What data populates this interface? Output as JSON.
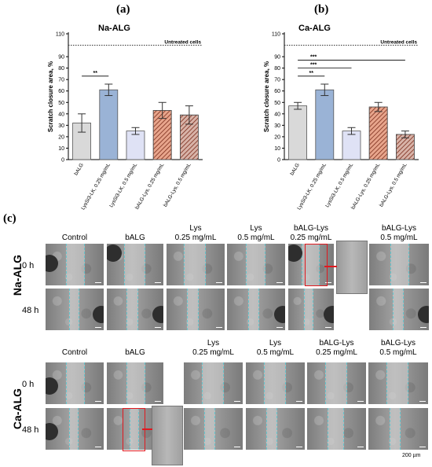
{
  "panels": {
    "a": "(a)",
    "b": "(b)",
    "c": "(c)"
  },
  "chart_data": [
    {
      "type": "bar",
      "title": "Na-ALG",
      "ylabel": "Scratch closure area, %",
      "ylim": [
        0,
        110
      ],
      "yticks": [
        "0",
        "10",
        "20",
        "30",
        "40",
        "50",
        "60",
        "70",
        "80",
        "90",
        "110"
      ],
      "categories": [
        "bALG",
        "LysSi3-LK, 0.25 mg/mL",
        "LysSi3-LK, 0.5 mg/mL",
        "bALG-Lys, 0.25 mg/mL",
        "bALG-Lys, 0.5 mg/mL"
      ],
      "values": [
        32,
        61,
        25,
        43,
        39
      ],
      "errors": [
        8,
        5,
        3,
        7,
        8
      ],
      "colors": [
        "#d9d9d9",
        "#9ab3d6",
        "#dfe2f5",
        "#e8a58c",
        "#d8b3a8"
      ],
      "hatched": [
        false,
        false,
        false,
        true,
        true
      ],
      "reference": {
        "label": "Untreated cells",
        "value": 100
      },
      "significance": [
        {
          "from": 0,
          "to": 1,
          "label": "**",
          "y": 73
        }
      ]
    },
    {
      "type": "bar",
      "title": "Ca-ALG",
      "ylabel": "Scratch closure area, %",
      "ylim": [
        0,
        110
      ],
      "yticks": [
        "0",
        "10",
        "20",
        "30",
        "40",
        "50",
        "60",
        "70",
        "80",
        "90",
        "110"
      ],
      "categories": [
        "bALG",
        "LysSi3-LK, 0.25 mg/mL",
        "LysSi3-LK, 0.5 mg/mL",
        "bALG-Lys, 0.25 mg/mL",
        "bALG-Lys, 0.5 mg/mL"
      ],
      "values": [
        47,
        61,
        25,
        46,
        22
      ],
      "errors": [
        3,
        5,
        3,
        4,
        3
      ],
      "colors": [
        "#d9d9d9",
        "#9ab3d6",
        "#dfe2f5",
        "#e8a58c",
        "#d8b3a8"
      ],
      "hatched": [
        false,
        false,
        false,
        true,
        true
      ],
      "reference": {
        "label": "Untreated cells",
        "value": 100
      },
      "significance": [
        {
          "from": 0,
          "to": 1,
          "label": "**",
          "y": 73
        },
        {
          "from": 0,
          "to": 2,
          "label": "***",
          "y": 80
        },
        {
          "from": 0,
          "to": 4,
          "label": "***",
          "y": 87
        }
      ]
    }
  ],
  "micrographs": {
    "na_group": "Na-ALG",
    "ca_group": "Ca-ALG",
    "rows": [
      "0 h",
      "48 h"
    ],
    "na_columns": [
      "Control",
      "bALG",
      "Lys\n0.25 mg/mL",
      "Lys\n0.5 mg/mL",
      "bALG-Lys\n0.25 mg/mL",
      "bALG-Lys\n0.5 mg/mL"
    ],
    "ca_columns": [
      "Control",
      "bALG",
      "Lys\n0.25 mg/mL",
      "Lys\n0.5 mg/mL",
      "bALG-Lys\n0.25 mg/mL",
      "bALG-Lys\n0.5 mg/mL"
    ],
    "scale_bar": "200 µm"
  }
}
